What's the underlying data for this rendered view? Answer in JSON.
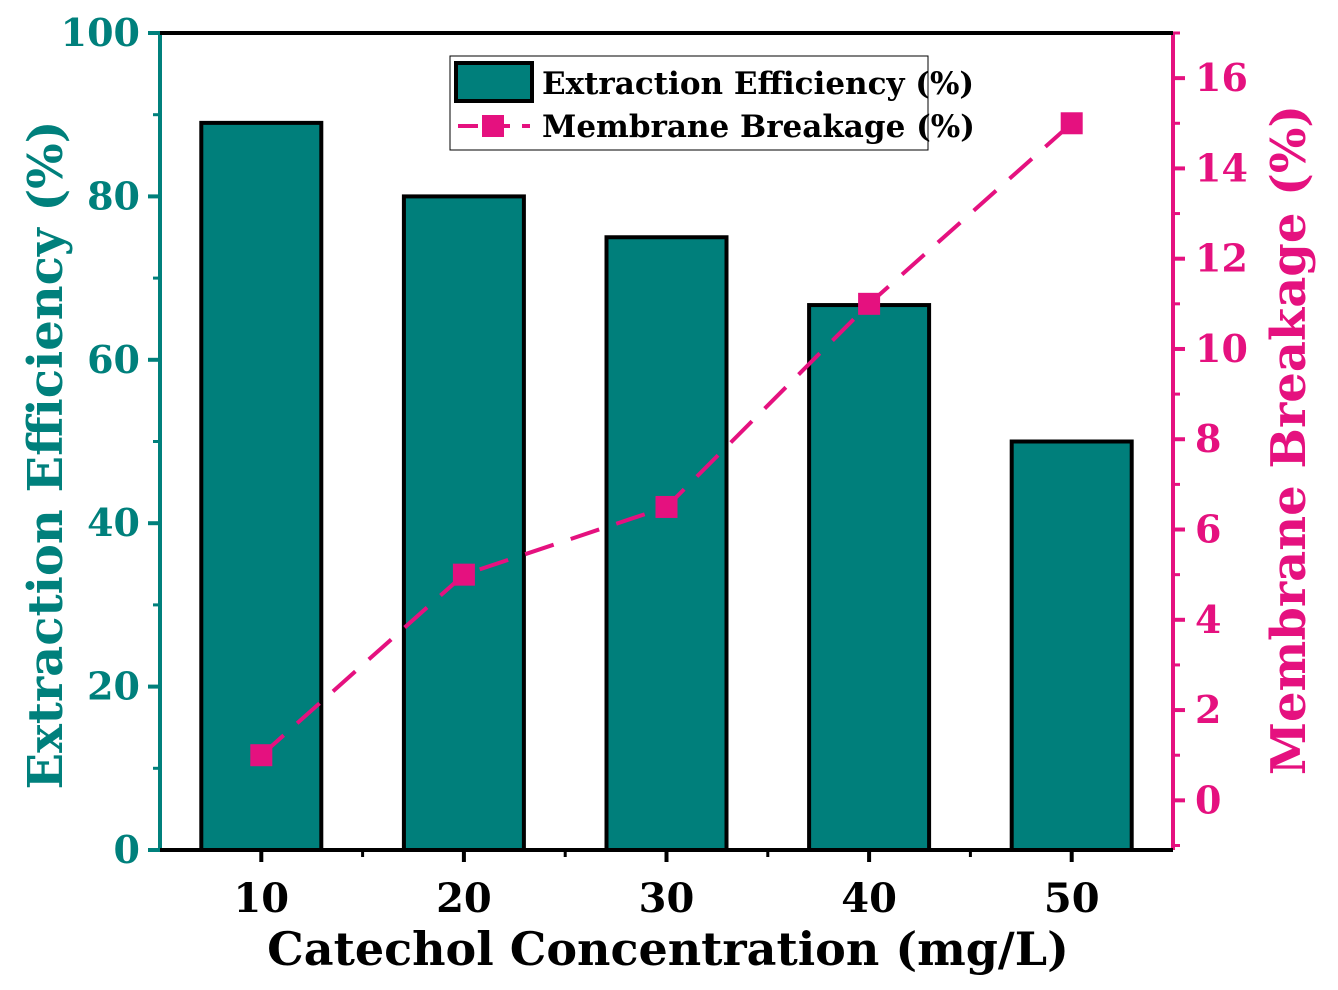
{
  "chart_data": {
    "type": "bar",
    "categories": [
      "10",
      "20",
      "30",
      "40",
      "50"
    ],
    "xlabel": "Catechol Concentration (mg/L)",
    "ylabel": "Extraction Efficiency (%)",
    "y2label": "Membrane Breakage (%)",
    "ylim": [
      0,
      100
    ],
    "y2lim": [
      -1.1,
      17.0
    ],
    "yticks": [
      "0",
      "20",
      "40",
      "60",
      "80",
      "100"
    ],
    "y2ticks": [
      "0",
      "2",
      "4",
      "6",
      "8",
      "10",
      "12",
      "14",
      "16"
    ],
    "series": [
      {
        "name": "Extraction Efficiency (%)",
        "type": "bar",
        "axis": "left",
        "values": [
          89,
          80,
          75,
          66.7,
          50
        ]
      },
      {
        "name": "Membrane Breakage (%)",
        "type": "line",
        "axis": "right",
        "values": [
          1.0,
          5.0,
          6.5,
          11.0,
          15.0
        ]
      }
    ],
    "legend_position": "top-center",
    "grid": false,
    "colors": {
      "bar_fill": "#007f7b",
      "line": "#e5117f",
      "left_axis": "#00807c",
      "right_axis": "#e5117f",
      "frame": "#000000"
    }
  }
}
